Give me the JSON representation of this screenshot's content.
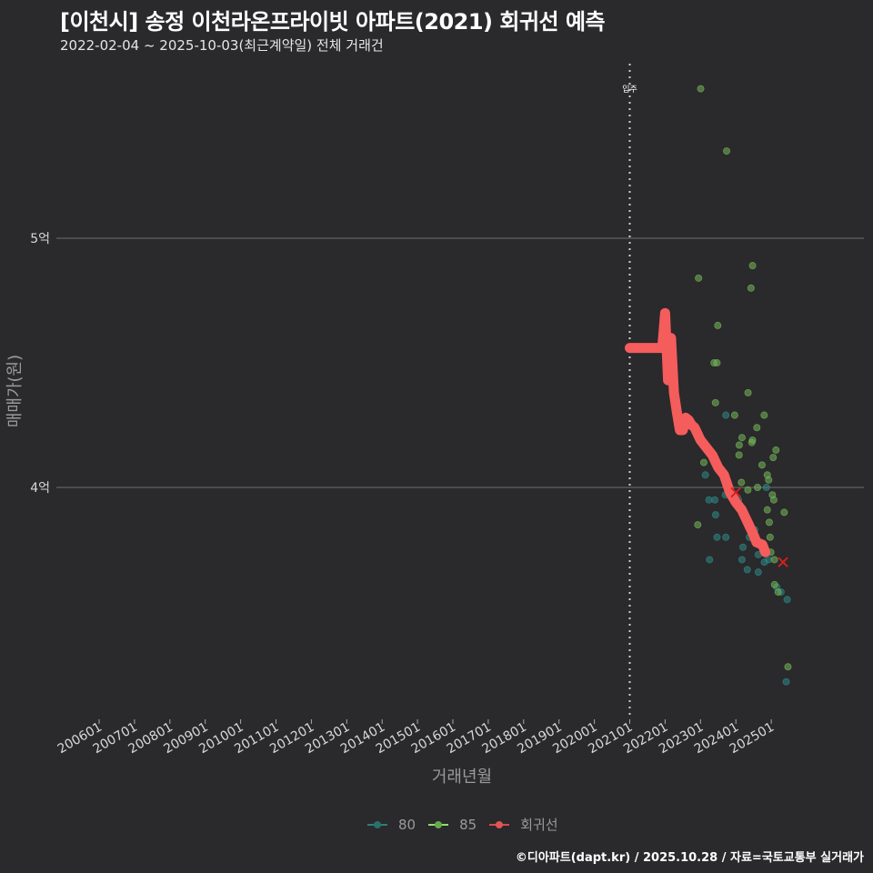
{
  "header": {
    "title": "[이천시] 송정 이천라온프라이빗 아파트(2021) 회귀선 예측",
    "subtitle": "2022-02-04 ~ 2025-10-03(최근계약일) 전체 거래건"
  },
  "footer": {
    "credit": "©디아파트(dapt.kr) / 2025.10.28 / 자료=국토교통부 실거래가"
  },
  "legend": [
    {
      "label": "80",
      "color": "#2a7f7a"
    },
    {
      "label": "85",
      "color": "#7ccd5a"
    },
    {
      "label": "회귀선",
      "color": "#f25a5a"
    }
  ],
  "colors": {
    "background": "#2a292b",
    "grid": "#6e6e6e",
    "series_80": "#2e8a86",
    "series_85": "#74b85a",
    "regression": "#f55c5c",
    "marker_x": "#d02020"
  },
  "chart_data": {
    "type": "scatter",
    "title": "[이천시] 송정 이천라온프라이빗 아파트(2021) 회귀선 예측",
    "subtitle": "2022-02-04 ~ 2025-10-03(최근계약일) 전체 거래건",
    "xlabel": "거래년월",
    "ylabel": "매매가(원)",
    "x_ticks": [
      "200601",
      "200701",
      "200801",
      "200901",
      "201001",
      "201101",
      "201201",
      "201301",
      "201401",
      "201501",
      "201601",
      "201701",
      "201801",
      "201901",
      "202001",
      "202101",
      "202201",
      "202301",
      "202401",
      "202501"
    ],
    "y_ticks": [
      {
        "label": "4억",
        "value": 400000000
      },
      {
        "label": "5억",
        "value": 500000000
      }
    ],
    "ylim": [
      320000000,
      570000000
    ],
    "grid": true,
    "legend_position": "bottom",
    "annotation": {
      "label": "입주",
      "x": "2021-01",
      "style": "dotted vertical line"
    },
    "series": [
      {
        "name": "80",
        "points": [
          [
            "2023-10",
            429000000
          ],
          [
            "2023-02",
            405000000
          ],
          [
            "2023-04",
            395000000
          ],
          [
            "2023-06",
            389000000
          ],
          [
            "2023-07",
            380000000
          ],
          [
            "2023-06",
            395000000
          ],
          [
            "2023-09",
            397000000
          ],
          [
            "2023-05",
            371000000
          ],
          [
            "2023-10",
            380000000
          ],
          [
            "2024-03",
            376000000
          ],
          [
            "2024-04",
            371000000
          ],
          [
            "2024-06",
            380000000
          ],
          [
            "2024-07",
            383000000
          ],
          [
            "2024-08",
            377000000
          ],
          [
            "2024-09",
            373000000
          ],
          [
            "2024-10",
            370000000
          ],
          [
            "2024-05",
            367000000
          ],
          [
            "2024-02",
            395000000
          ],
          [
            "2024-12",
            400000000
          ],
          [
            "2025-01",
            371000000
          ],
          [
            "2025-03",
            360000000
          ],
          [
            "2025-05",
            358000000
          ],
          [
            "2025-06",
            355000000
          ],
          [
            "2025-07",
            322000000
          ],
          [
            "2024-09",
            366000000
          ]
        ]
      },
      {
        "name": "85",
        "points": [
          [
            "2023-02",
            560000000
          ],
          [
            "2023-10",
            535000000
          ],
          [
            "2023-01",
            484000000
          ],
          [
            "2024-06",
            489000000
          ],
          [
            "2024-06",
            480000000
          ],
          [
            "2023-07",
            465000000
          ],
          [
            "2023-06",
            450000000
          ],
          [
            "2023-07",
            450000000
          ],
          [
            "2024-05",
            438000000
          ],
          [
            "2023-07",
            434000000
          ],
          [
            "2024-01",
            429000000
          ],
          [
            "2024-11",
            429000000
          ],
          [
            "2024-06",
            419000000
          ],
          [
            "2024-06",
            418000000
          ],
          [
            "2024-04",
            420000000
          ],
          [
            "2024-02",
            417000000
          ],
          [
            "2023-04",
            415000000
          ],
          [
            "2024-03",
            413000000
          ],
          [
            "2024-08",
            424000000
          ],
          [
            "2025-03",
            415000000
          ],
          [
            "2025-01",
            412000000
          ],
          [
            "2024-10",
            409000000
          ],
          [
            "2024-11",
            405000000
          ],
          [
            "2023-02",
            410000000
          ],
          [
            "2024-06",
            399000000
          ],
          [
            "2024-03",
            402000000
          ],
          [
            "2024-12",
            403000000
          ],
          [
            "2024-09",
            400000000
          ],
          [
            "2025-01",
            397000000
          ],
          [
            "2025-05",
            390000000
          ],
          [
            "2024-11",
            391000000
          ],
          [
            "2025-02",
            395000000
          ],
          [
            "2023-01",
            385000000
          ],
          [
            "2025-01",
            386000000
          ],
          [
            "2025-01",
            380000000
          ],
          [
            "2025-01",
            374000000
          ],
          [
            "2025-03",
            371000000
          ],
          [
            "2025-02",
            361000000
          ],
          [
            "2025-04",
            358000000
          ],
          [
            "2025-06",
            328000000
          ]
        ]
      },
      {
        "name": "회귀선",
        "line": [
          [
            "2021-01",
            456000000
          ],
          [
            "2021-12",
            456000000
          ],
          [
            "2022-01",
            470000000
          ],
          [
            "2022-02",
            443000000
          ],
          [
            "2022-03",
            460000000
          ],
          [
            "2022-04",
            438000000
          ],
          [
            "2022-05",
            430000000
          ],
          [
            "2022-06",
            423000000
          ],
          [
            "2022-07",
            423000000
          ],
          [
            "2022-08",
            428000000
          ],
          [
            "2022-09",
            427000000
          ],
          [
            "2022-10",
            425000000
          ],
          [
            "2022-11",
            424000000
          ],
          [
            "2023-01",
            419000000
          ],
          [
            "2023-03",
            416000000
          ],
          [
            "2023-05",
            413000000
          ],
          [
            "2023-07",
            408000000
          ],
          [
            "2023-09",
            405000000
          ],
          [
            "2023-11",
            398000000
          ],
          [
            "2024-01",
            394000000
          ],
          [
            "2024-03",
            391000000
          ],
          [
            "2024-05",
            386000000
          ],
          [
            "2024-07",
            381000000
          ],
          [
            "2024-08",
            378000000
          ],
          [
            "2024-10",
            377000000
          ],
          [
            "2024-11",
            374000000
          ]
        ]
      },
      {
        "name": "predicted-x-markers",
        "points": [
          [
            "2024-01",
            398000000
          ],
          [
            "2025-05",
            370000000
          ]
        ]
      }
    ]
  }
}
